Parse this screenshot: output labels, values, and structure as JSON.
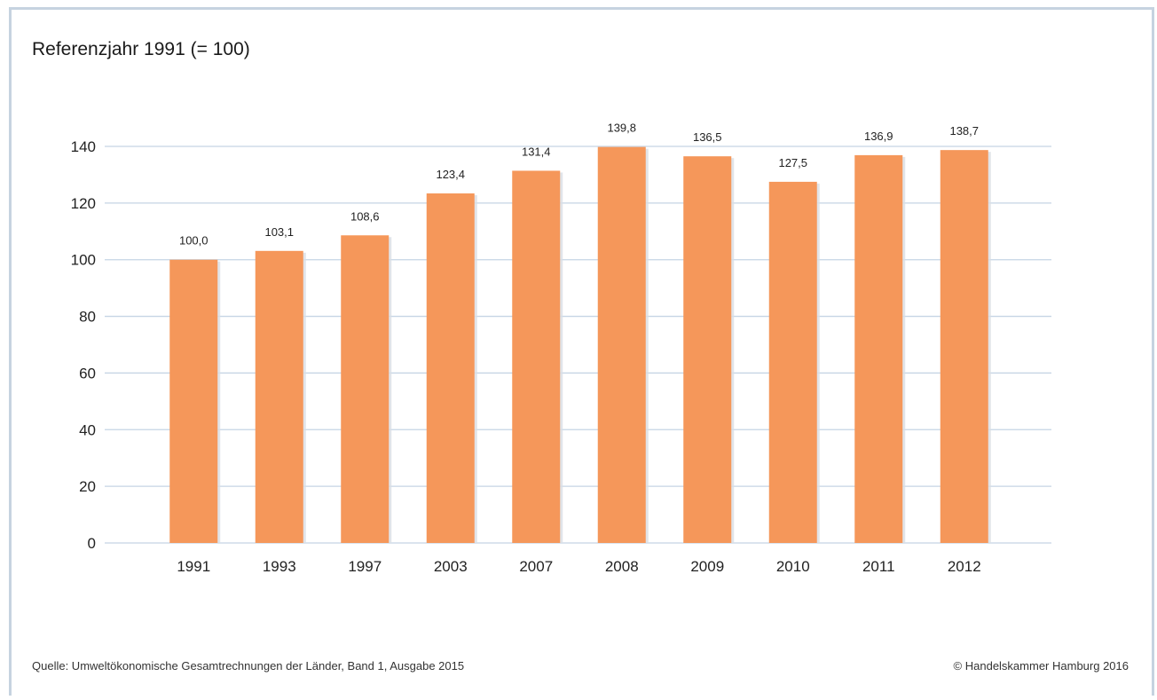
{
  "header": {
    "title": "Referenzjahr 1991 (= 100)"
  },
  "footer": {
    "source": "Quelle: Umweltökonomische Gesamtrechnungen der Länder, Band 1, Ausgabe 2015",
    "copyright": "© Handelskammer Hamburg 2016"
  },
  "colors": {
    "bar": "#f5975a",
    "grid": "#c5d4e4",
    "frame": "#c6d3e0"
  },
  "chart_data": {
    "type": "bar",
    "title": "Referenzjahr 1991 (= 100)",
    "categories": [
      "1991",
      "1993",
      "1997",
      "2003",
      "2007",
      "2008",
      "2009",
      "2010",
      "2011",
      "2012"
    ],
    "values": [
      100.0,
      103.1,
      108.6,
      123.4,
      131.4,
      139.8,
      136.5,
      127.5,
      136.9,
      138.7
    ],
    "value_labels": [
      "100,0",
      "103,1",
      "108,6",
      "123,4",
      "131,4",
      "139,8",
      "136,5",
      "127,5",
      "136,9",
      "138,7"
    ],
    "yticks": [
      0,
      20,
      40,
      60,
      80,
      100,
      120,
      140
    ],
    "ylim": [
      0,
      140
    ],
    "xlabel": "",
    "ylabel": "",
    "grid": true,
    "legend": "none"
  }
}
